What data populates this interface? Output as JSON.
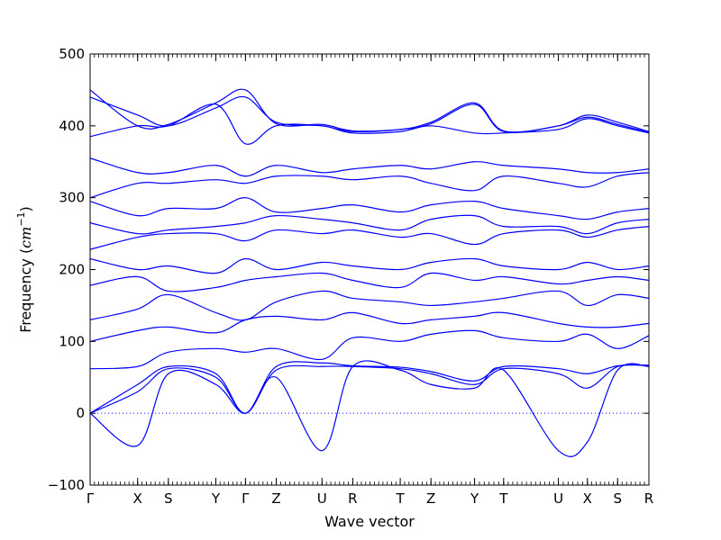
{
  "chart_data": {
    "type": "line",
    "xlabel": "Wave vector",
    "ylabel_text": "Frequency (",
    "ylabel_unit_base": "cm",
    "ylabel_unit_exp": "−1",
    "ylabel_close": ")",
    "ylim": [
      -100,
      500
    ],
    "yticks": [
      -100,
      0,
      100,
      200,
      300,
      400,
      500
    ],
    "zero_line": "dotted",
    "series_color": "#0000ff",
    "high_symmetry_points": [
      {
        "label": "Γ",
        "x": 0.0
      },
      {
        "label": "X",
        "x": 0.085
      },
      {
        "label": "S",
        "x": 0.14
      },
      {
        "label": "Y",
        "x": 0.225
      },
      {
        "label": "Γ",
        "x": 0.278
      },
      {
        "label": "Z",
        "x": 0.333
      },
      {
        "label": "U",
        "x": 0.415
      },
      {
        "label": "R",
        "x": 0.47
      },
      {
        "label": "T",
        "x": 0.555
      },
      {
        "label": "Z",
        "x": 0.61
      },
      {
        "label": "Y",
        "x": 0.688
      },
      {
        "label": "T",
        "x": 0.74
      },
      {
        "label": "U",
        "x": 0.838
      },
      {
        "label": "X",
        "x": 0.89
      },
      {
        "label": "S",
        "x": 0.944
      },
      {
        "label": "R",
        "x": 1.0
      }
    ],
    "series": [
      {
        "x": [
          0,
          0.085,
          0.14,
          0.225,
          0.278,
          0.333,
          0.415,
          0.47,
          0.555,
          0.61,
          0.688,
          0.74,
          0.838,
          0.89,
          0.944,
          1
        ],
        "y": [
          0,
          -45,
          55,
          40,
          0,
          50,
          -52,
          65,
          60,
          40,
          35,
          60,
          -52,
          -40,
          60,
          65
        ]
      },
      {
        "x": [
          0,
          0.085,
          0.14,
          0.225,
          0.278,
          0.333,
          0.415,
          0.47,
          0.555,
          0.61,
          0.688,
          0.74,
          0.838,
          0.89,
          0.944,
          1
        ],
        "y": [
          0,
          30,
          62,
          50,
          0,
          60,
          65,
          65,
          62,
          55,
          40,
          62,
          55,
          35,
          65,
          66
        ]
      },
      {
        "x": [
          0,
          0.085,
          0.14,
          0.225,
          0.278,
          0.333,
          0.415,
          0.47,
          0.555,
          0.61,
          0.688,
          0.74,
          0.838,
          0.89,
          0.944,
          1
        ],
        "y": [
          0,
          40,
          65,
          55,
          0,
          65,
          70,
          66,
          64,
          58,
          45,
          65,
          62,
          55,
          66,
          67
        ]
      },
      {
        "x": [
          0,
          0.085,
          0.14,
          0.225,
          0.278,
          0.333,
          0.415,
          0.47,
          0.555,
          0.61,
          0.688,
          0.74,
          0.838,
          0.89,
          0.944,
          1
        ],
        "y": [
          62,
          65,
          85,
          90,
          85,
          90,
          75,
          105,
          100,
          110,
          115,
          105,
          100,
          110,
          90,
          108
        ]
      },
      {
        "x": [
          0,
          0.085,
          0.14,
          0.225,
          0.278,
          0.333,
          0.415,
          0.47,
          0.555,
          0.61,
          0.688,
          0.74,
          0.838,
          0.89,
          0.944,
          1
        ],
        "y": [
          100,
          115,
          120,
          112,
          130,
          135,
          130,
          140,
          125,
          130,
          135,
          140,
          125,
          120,
          120,
          125
        ]
      },
      {
        "x": [
          0,
          0.085,
          0.14,
          0.225,
          0.278,
          0.333,
          0.415,
          0.47,
          0.555,
          0.61,
          0.688,
          0.74,
          0.838,
          0.89,
          0.944,
          1
        ],
        "y": [
          130,
          145,
          165,
          140,
          130,
          155,
          170,
          160,
          155,
          150,
          155,
          160,
          170,
          150,
          165,
          160
        ]
      },
      {
        "x": [
          0,
          0.085,
          0.14,
          0.225,
          0.278,
          0.333,
          0.415,
          0.47,
          0.555,
          0.61,
          0.688,
          0.74,
          0.838,
          0.89,
          0.944,
          1
        ],
        "y": [
          178,
          190,
          170,
          175,
          185,
          190,
          195,
          185,
          175,
          195,
          185,
          190,
          180,
          185,
          190,
          185
        ]
      },
      {
        "x": [
          0,
          0.085,
          0.14,
          0.225,
          0.278,
          0.333,
          0.415,
          0.47,
          0.555,
          0.61,
          0.688,
          0.74,
          0.838,
          0.89,
          0.944,
          1
        ],
        "y": [
          215,
          200,
          205,
          195,
          215,
          200,
          210,
          205,
          200,
          210,
          215,
          205,
          200,
          210,
          200,
          205
        ]
      },
      {
        "x": [
          0,
          0.085,
          0.14,
          0.225,
          0.278,
          0.333,
          0.415,
          0.47,
          0.555,
          0.61,
          0.688,
          0.74,
          0.838,
          0.89,
          0.944,
          1
        ],
        "y": [
          228,
          245,
          250,
          250,
          240,
          255,
          250,
          255,
          245,
          250,
          235,
          250,
          255,
          245,
          255,
          260
        ]
      },
      {
        "x": [
          0,
          0.085,
          0.14,
          0.225,
          0.278,
          0.333,
          0.415,
          0.47,
          0.555,
          0.61,
          0.688,
          0.74,
          0.838,
          0.89,
          0.944,
          1
        ],
        "y": [
          265,
          250,
          255,
          260,
          265,
          275,
          270,
          265,
          255,
          270,
          275,
          260,
          260,
          250,
          265,
          270
        ]
      },
      {
        "x": [
          0,
          0.085,
          0.14,
          0.225,
          0.278,
          0.333,
          0.415,
          0.47,
          0.555,
          0.61,
          0.688,
          0.74,
          0.838,
          0.89,
          0.944,
          1
        ],
        "y": [
          295,
          275,
          285,
          285,
          300,
          280,
          285,
          290,
          280,
          290,
          295,
          285,
          275,
          270,
          280,
          285
        ]
      },
      {
        "x": [
          0,
          0.085,
          0.14,
          0.225,
          0.278,
          0.333,
          0.415,
          0.47,
          0.555,
          0.61,
          0.688,
          0.74,
          0.838,
          0.89,
          0.944,
          1
        ],
        "y": [
          300,
          320,
          320,
          325,
          320,
          330,
          330,
          325,
          330,
          320,
          310,
          330,
          320,
          315,
          330,
          335
        ]
      },
      {
        "x": [
          0,
          0.085,
          0.14,
          0.225,
          0.278,
          0.333,
          0.415,
          0.47,
          0.555,
          0.61,
          0.688,
          0.74,
          0.838,
          0.89,
          0.944,
          1
        ],
        "y": [
          355,
          335,
          335,
          345,
          330,
          345,
          335,
          340,
          345,
          340,
          350,
          345,
          340,
          335,
          335,
          340
        ]
      },
      {
        "x": [
          0,
          0.085,
          0.14,
          0.225,
          0.278,
          0.333,
          0.415,
          0.47,
          0.555,
          0.61,
          0.688,
          0.74,
          0.838,
          0.89,
          0.944,
          1
        ],
        "y": [
          385,
          400,
          400,
          430,
          375,
          400,
          400,
          390,
          392,
          400,
          390,
          390,
          395,
          410,
          400,
          390
        ]
      },
      {
        "x": [
          0,
          0.085,
          0.14,
          0.225,
          0.278,
          0.333,
          0.415,
          0.47,
          0.555,
          0.61,
          0.688,
          0.74,
          0.838,
          0.89,
          0.944,
          1
        ],
        "y": [
          440,
          415,
          400,
          425,
          440,
          405,
          400,
          392,
          395,
          405,
          432,
          393,
          400,
          415,
          405,
          392
        ]
      },
      {
        "x": [
          0,
          0.085,
          0.14,
          0.225,
          0.278,
          0.333,
          0.415,
          0.47,
          0.555,
          0.61,
          0.688,
          0.74,
          0.838,
          0.89,
          0.944,
          1
        ],
        "y": [
          450,
          400,
          402,
          432,
          450,
          403,
          402,
          393,
          395,
          403,
          430,
          392,
          400,
          412,
          402,
          391
        ]
      }
    ]
  }
}
